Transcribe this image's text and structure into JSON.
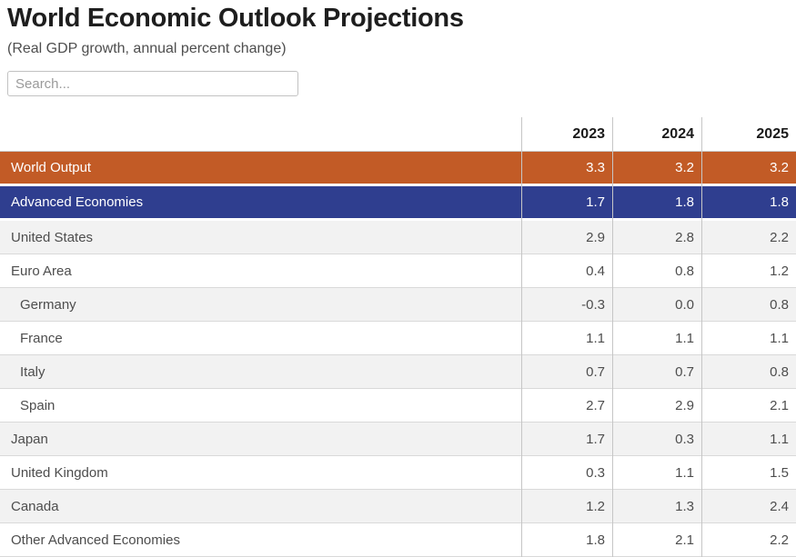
{
  "page": {
    "title": "World Economic Outlook Projections",
    "subtitle": "(Real GDP growth, annual percent change)"
  },
  "search": {
    "placeholder": "Search..."
  },
  "chart_data": {
    "type": "table",
    "title": "World Economic Outlook Projections",
    "subtitle": "(Real GDP growth, annual percent change)",
    "columns": [
      "2023",
      "2024",
      "2025"
    ],
    "rows": [
      {
        "label": "World Output",
        "values": [
          "3.3",
          "3.2",
          "3.2"
        ],
        "highlight": "orange",
        "indent": false
      },
      {
        "label": "Advanced Economies",
        "values": [
          "1.7",
          "1.8",
          "1.8"
        ],
        "highlight": "blue",
        "indent": false
      },
      {
        "label": "United States",
        "values": [
          "2.9",
          "2.8",
          "2.2"
        ],
        "highlight": "none",
        "indent": false
      },
      {
        "label": "Euro Area",
        "values": [
          "0.4",
          "0.8",
          "1.2"
        ],
        "highlight": "none",
        "indent": false
      },
      {
        "label": "Germany",
        "values": [
          "-0.3",
          "0.0",
          "0.8"
        ],
        "highlight": "none",
        "indent": true
      },
      {
        "label": "France",
        "values": [
          "1.1",
          "1.1",
          "1.1"
        ],
        "highlight": "none",
        "indent": true
      },
      {
        "label": "Italy",
        "values": [
          "0.7",
          "0.7",
          "0.8"
        ],
        "highlight": "none",
        "indent": true
      },
      {
        "label": "Spain",
        "values": [
          "2.7",
          "2.9",
          "2.1"
        ],
        "highlight": "none",
        "indent": true
      },
      {
        "label": "Japan",
        "values": [
          "1.7",
          "0.3",
          "1.1"
        ],
        "highlight": "none",
        "indent": false
      },
      {
        "label": "United Kingdom",
        "values": [
          "0.3",
          "1.1",
          "1.5"
        ],
        "highlight": "none",
        "indent": false
      },
      {
        "label": "Canada",
        "values": [
          "1.2",
          "1.3",
          "2.4"
        ],
        "highlight": "none",
        "indent": false
      },
      {
        "label": "Other Advanced Economies",
        "values": [
          "1.8",
          "2.1",
          "2.2"
        ],
        "highlight": "none",
        "indent": false
      }
    ]
  },
  "colors": {
    "highlight_orange": "#c25b26",
    "highlight_blue": "#2f3e8f",
    "row_alt": "#f2f2f2",
    "grid_line": "#c6c6c6"
  }
}
